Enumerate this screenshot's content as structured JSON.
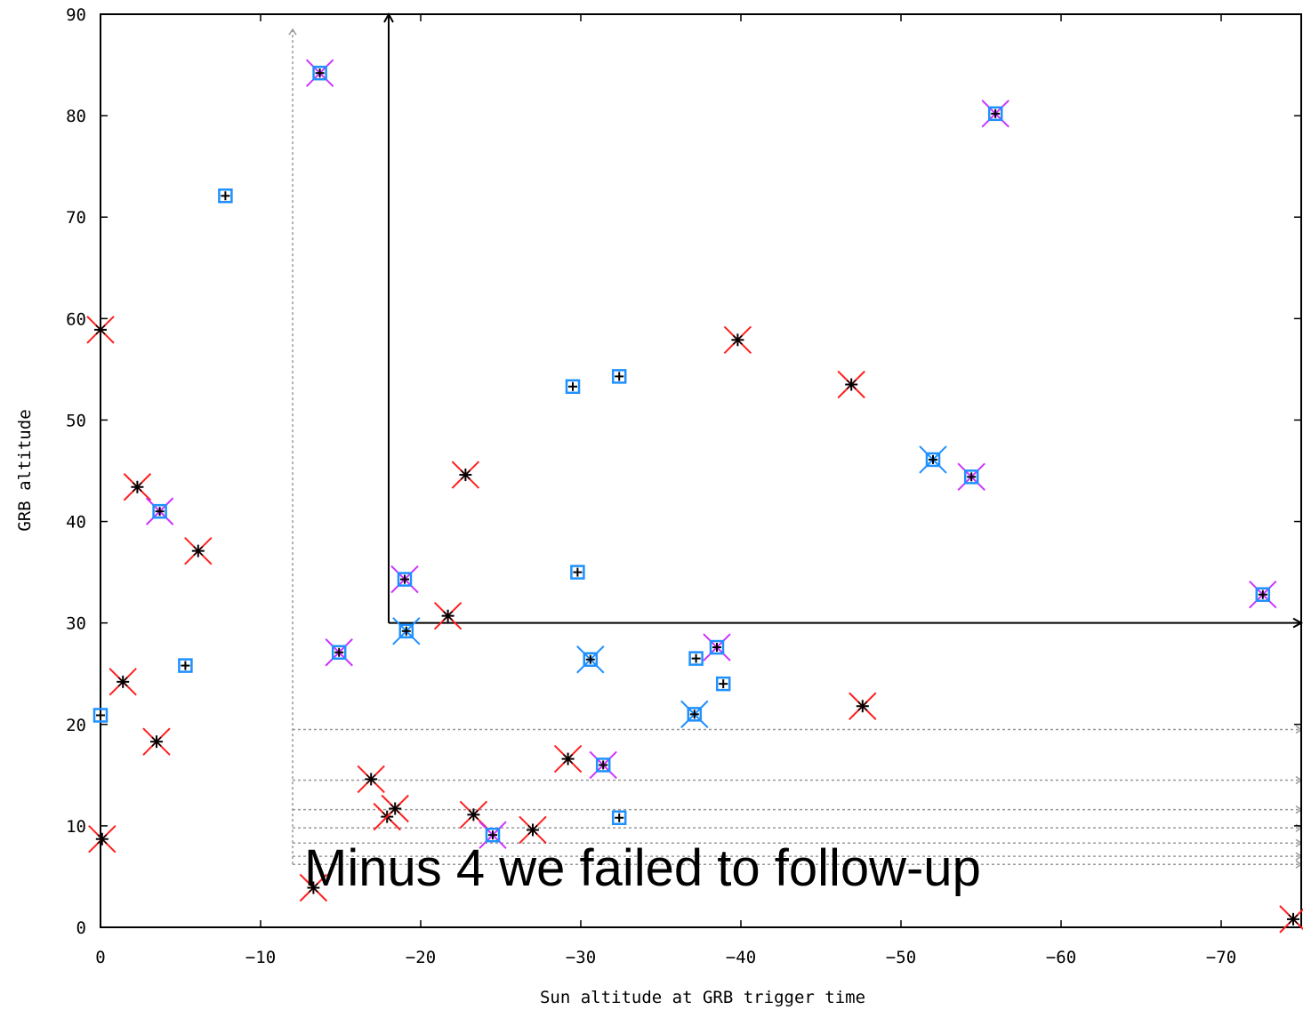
{
  "chart_data": {
    "type": "scatter",
    "title": "",
    "xlabel": "Sun altitude at GRB trigger time",
    "ylabel": "GRB altitude",
    "xlim": [
      0,
      -75
    ],
    "ylim": [
      0,
      90
    ],
    "x_ticks": [
      0,
      -10,
      -20,
      -30,
      -40,
      -50,
      -60,
      -70
    ],
    "y_ticks": [
      0,
      10,
      20,
      30,
      40,
      50,
      60,
      70,
      80,
      90
    ],
    "grid": false,
    "legend": "none",
    "annotation": "Minus 4 we failed to follow-up",
    "colors": {
      "red_marker": "#ff2020",
      "blue_marker": "#1e90ff",
      "magenta_marker": "#cc33ff",
      "star": "#000000",
      "dotted_line": "#999999",
      "axes": "#000000"
    },
    "region": {
      "vertical_dotted_x": -12,
      "solid_box": {
        "x_min": -18,
        "y_min": 30
      },
      "horizontal_dotted_y": [
        19.5,
        14.5,
        11.6,
        9.8,
        8.3,
        7.0,
        6.2
      ]
    },
    "series": [
      {
        "marker": "red-x",
        "points": [
          [
            0,
            58.9
          ],
          [
            -0.1,
            8.7
          ],
          [
            -1.4,
            24.2
          ],
          [
            -2.3,
            43.4
          ],
          [
            -3.5,
            18.3
          ],
          [
            -6.1,
            37.1
          ],
          [
            -13.3,
            3.9
          ],
          [
            -16.9,
            14.6
          ],
          [
            -17.9,
            10.9
          ],
          [
            -18.4,
            11.7
          ],
          [
            -21.7,
            30.7
          ],
          [
            -22.8,
            44.6
          ],
          [
            -23.3,
            11.1
          ],
          [
            -27.0,
            9.6
          ],
          [
            -29.2,
            16.6
          ],
          [
            -39.8,
            57.9
          ],
          [
            -46.9,
            53.5
          ],
          [
            -47.6,
            21.8
          ],
          [
            -74.5,
            0.8
          ]
        ]
      },
      {
        "marker": "blue-box",
        "points": [
          [
            0,
            20.9
          ],
          [
            -5.3,
            25.8
          ],
          [
            -7.8,
            72.1
          ],
          [
            -29.5,
            53.3
          ],
          [
            -29.8,
            35.0
          ],
          [
            -32.4,
            54.3
          ],
          [
            -32.4,
            10.8
          ],
          [
            -37.2,
            26.5
          ],
          [
            -38.9,
            24.0
          ]
        ]
      },
      {
        "marker": "blue-box-with-blue-x",
        "points": [
          [
            -19.1,
            29.2
          ],
          [
            -30.6,
            26.4
          ],
          [
            -37.1,
            21.0
          ],
          [
            -52.0,
            46.1
          ]
        ]
      },
      {
        "marker": "blue-box-with-magenta-x",
        "points": [
          [
            -3.7,
            41.0
          ],
          [
            -13.7,
            84.2
          ],
          [
            -14.9,
            27.1
          ],
          [
            -19.0,
            34.3
          ],
          [
            -24.5,
            9.1
          ],
          [
            -31.4,
            16.0
          ],
          [
            -38.5,
            27.6
          ],
          [
            -54.4,
            44.4
          ],
          [
            -55.9,
            80.2
          ],
          [
            -72.6,
            32.8
          ]
        ]
      }
    ]
  }
}
